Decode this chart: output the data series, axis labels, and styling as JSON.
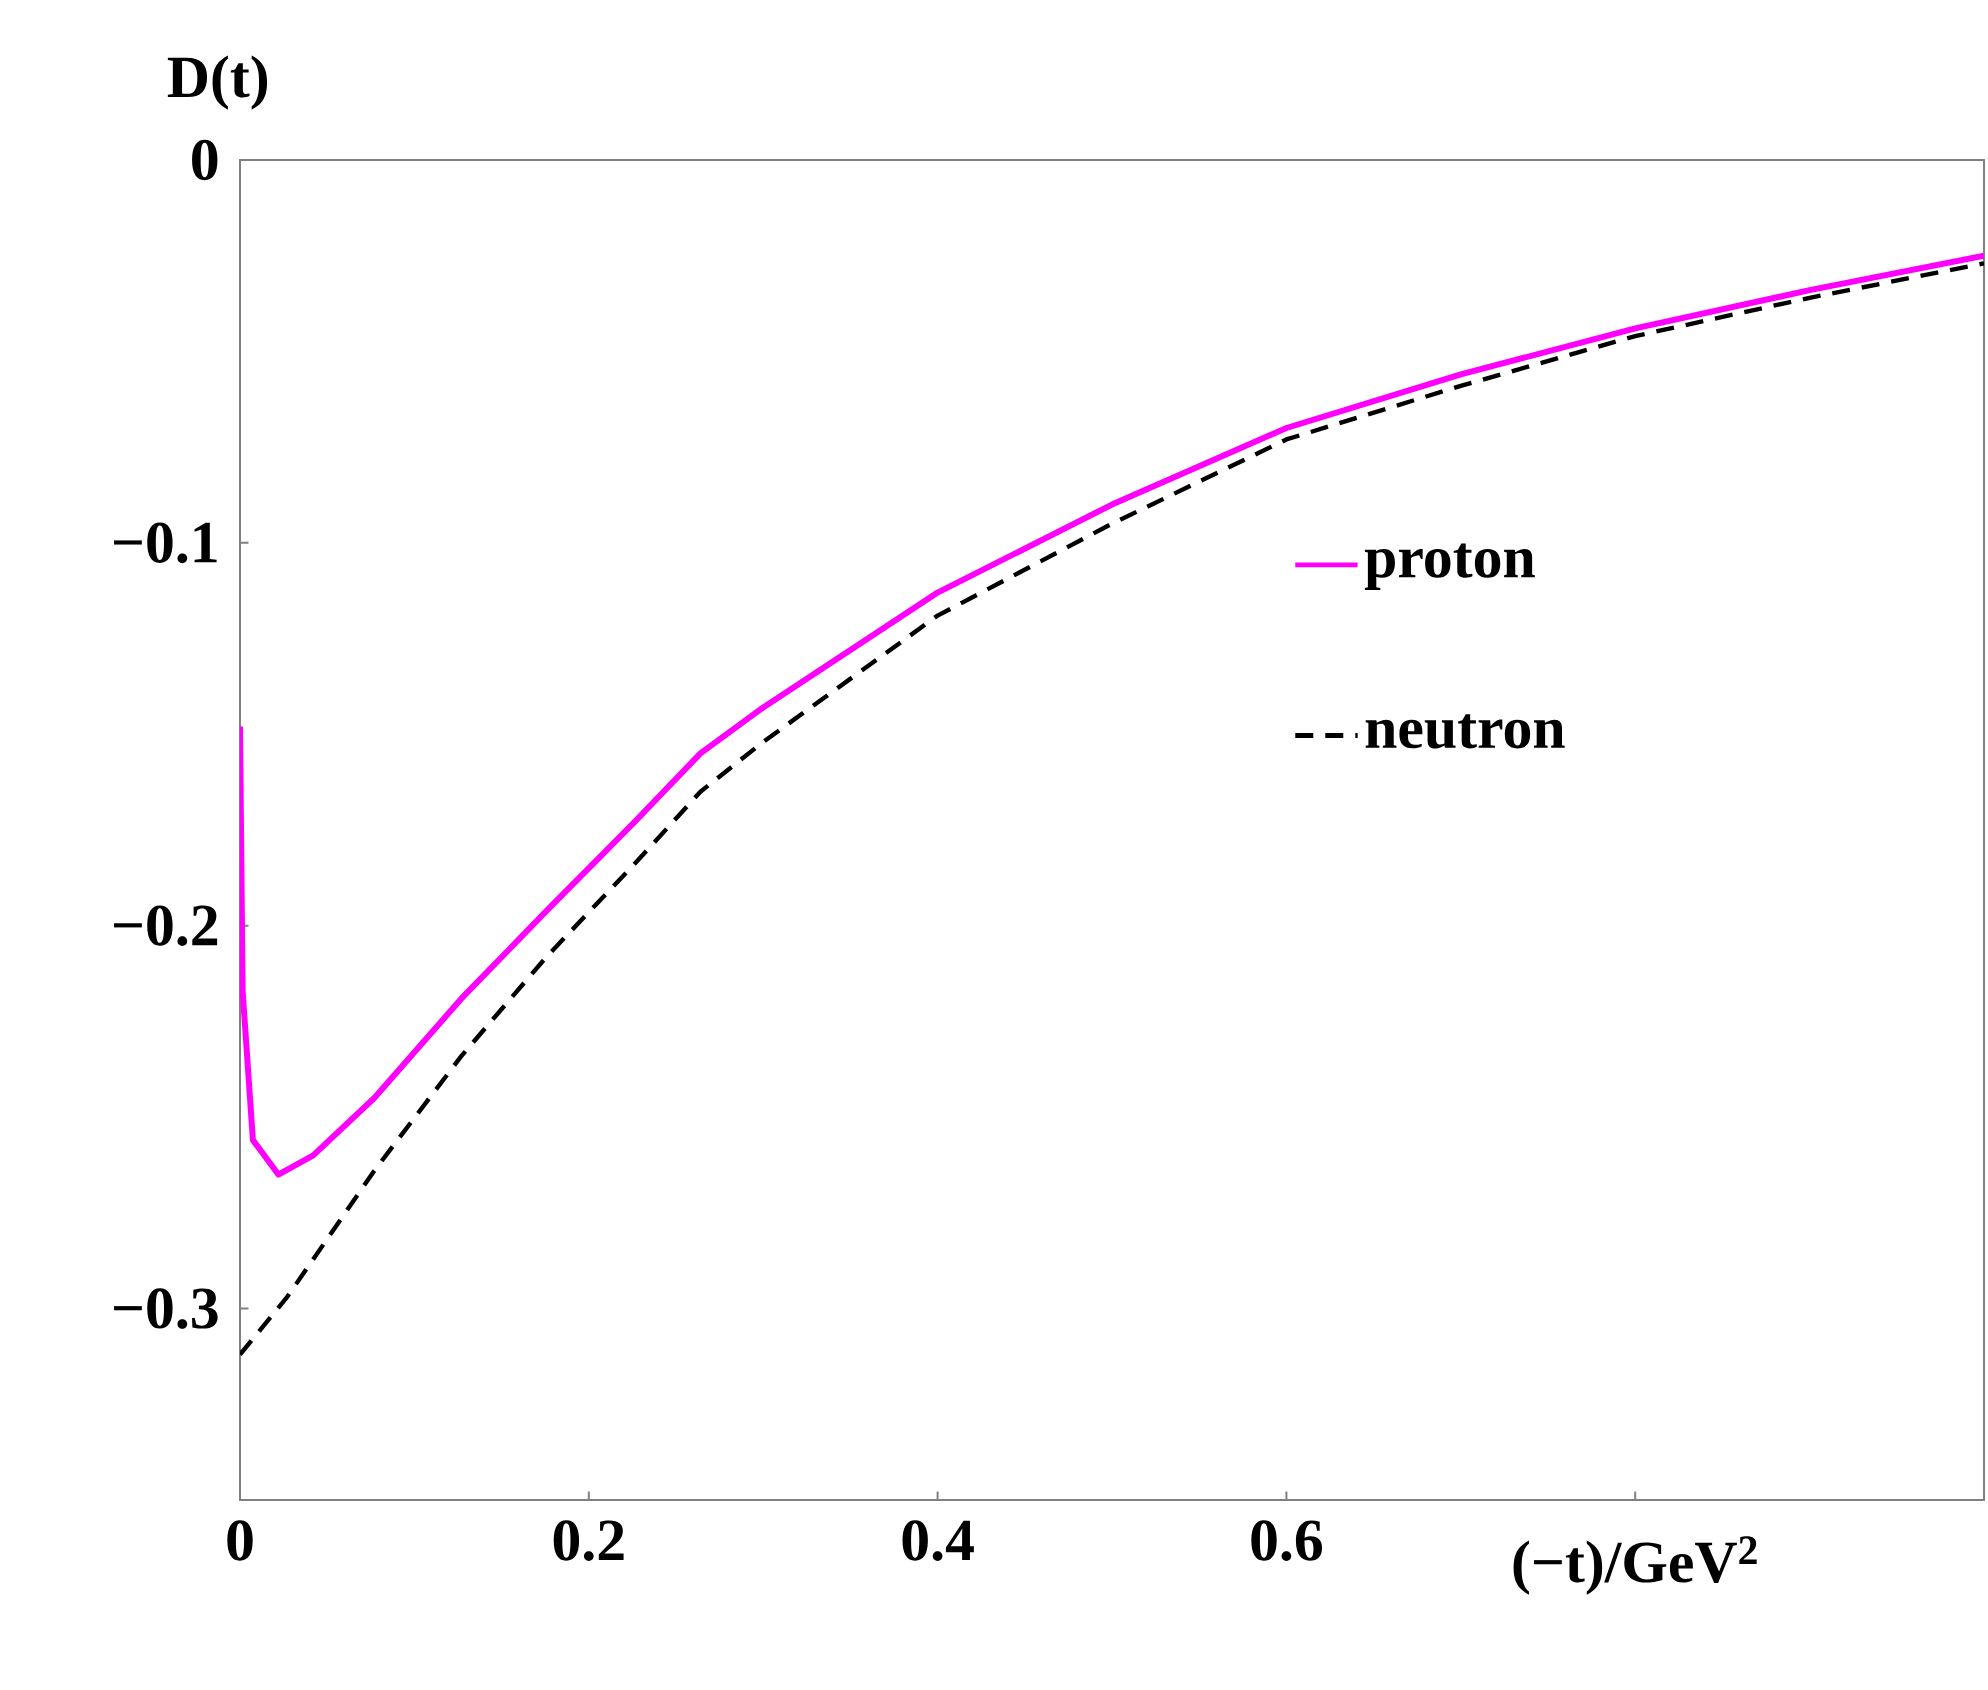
{
  "chart_data": {
    "type": "line",
    "ylabel": "D(t)",
    "xlabel": "(−t)/GeV$^{2}$",
    "xlim": [
      0,
      1
    ],
    "ylim": [
      -0.35,
      0
    ],
    "xticks": [
      0,
      0.2,
      0.4,
      0.6,
      {
        "value": 0.8,
        "label": null
      }
    ],
    "yticks": [
      0,
      {
        "value": -0.1,
        "label": "−0.1"
      },
      {
        "value": -0.2,
        "label": "−0.2"
      },
      {
        "value": -0.3,
        "label": "−0.3"
      }
    ],
    "legend": "right",
    "grid": false,
    "series": [
      {
        "name": "proton",
        "color": "#ff00ff",
        "line_style": "solid",
        "x": [
          0,
          0.0015,
          0.0074,
          0.022,
          0.042,
          0.077,
          0.127,
          0.176,
          0.226,
          0.264,
          0.3,
          0.4,
          0.5,
          0.6,
          0.7,
          0.8,
          0.9,
          1.0
        ],
        "values": [
          -0.148,
          -0.217,
          -0.256,
          -0.265,
          -0.26,
          -0.245,
          -0.219,
          -0.196,
          -0.173,
          -0.155,
          -0.143,
          -0.113,
          -0.09,
          -0.07,
          -0.056,
          -0.044,
          -0.034,
          -0.025
        ]
      },
      {
        "name": "neutron",
        "color": "#000000",
        "line_style": "dashed",
        "x": [
          0,
          0.027,
          0.077,
          0.127,
          0.176,
          0.226,
          0.264,
          0.3,
          0.4,
          0.5,
          0.6,
          0.7,
          0.8,
          0.9,
          1.0
        ],
        "values": [
          -0.312,
          -0.297,
          -0.264,
          -0.234,
          -0.208,
          -0.184,
          -0.165,
          -0.152,
          -0.119,
          -0.095,
          -0.073,
          -0.059,
          -0.046,
          -0.036,
          -0.027
        ]
      }
    ]
  }
}
